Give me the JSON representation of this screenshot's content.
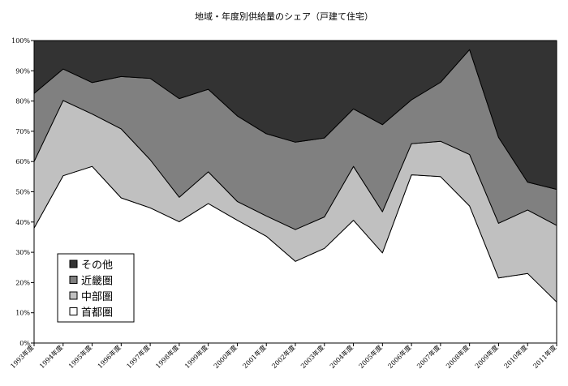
{
  "chart_data": {
    "type": "area",
    "stacked": true,
    "percent": true,
    "title": "地域・年度別供給量のシェア（戸建て住宅）",
    "xlabel": "",
    "ylabel": "",
    "ylim": [
      0,
      100
    ],
    "y_ticks": [
      "0%",
      "10%",
      "20%",
      "30%",
      "40%",
      "50%",
      "60%",
      "70%",
      "80%",
      "90%",
      "100%"
    ],
    "categories": [
      "1993年度",
      "1994年度",
      "1995年度",
      "1996年度",
      "1997年度",
      "1998年度",
      "1999年度",
      "2000年度",
      "2001年度",
      "2002年度",
      "2003年度",
      "2004年度",
      "2005年度",
      "2006年度",
      "2007年度",
      "2008年度",
      "2009年度",
      "2010年度",
      "2011年度"
    ],
    "series": [
      {
        "name": "首都圏",
        "color": "#ffffff",
        "values": [
          38,
          55.3,
          58.4,
          48,
          44.7,
          40.1,
          46.1,
          40.6,
          35.3,
          27,
          31.3,
          40.6,
          29.8,
          55.6,
          55,
          45.3,
          21.5,
          23,
          13.6
        ]
      },
      {
        "name": "中部圏",
        "color": "#c0c0c0",
        "values": [
          22,
          24.9,
          17.3,
          22.8,
          15.9,
          8.1,
          10.5,
          6.2,
          6.7,
          10.5,
          10.4,
          17.8,
          13.6,
          10.3,
          11.7,
          17,
          18.1,
          21,
          25.3
        ]
      },
      {
        "name": "近畿圏",
        "color": "#808080",
        "values": [
          22.5,
          10.4,
          10.4,
          17.3,
          26.9,
          32.6,
          27.3,
          28.3,
          27.2,
          28.9,
          26.1,
          19,
          28.8,
          14.5,
          19.5,
          34.7,
          28.4,
          9.2,
          11.9
        ]
      },
      {
        "name": "その他",
        "color": "#333333",
        "values": [
          17.5,
          9.4,
          13.9,
          11.9,
          12.5,
          19.2,
          16.1,
          24.9,
          30.8,
          33.6,
          32.2,
          22.6,
          27.8,
          19.6,
          13.8,
          3,
          32,
          46.8,
          49.2
        ]
      }
    ],
    "legend_position": "bottom-left",
    "legend_order": [
      "その他",
      "近畿圏",
      "中部圏",
      "首都圏"
    ],
    "grid": false
  }
}
